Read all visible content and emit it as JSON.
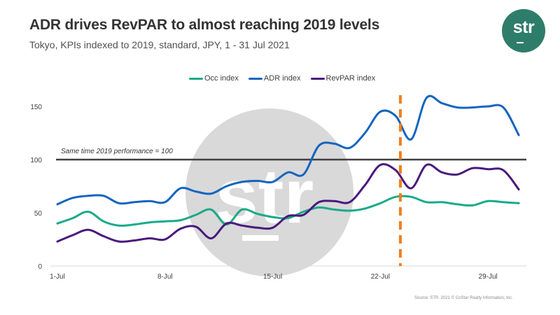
{
  "header": {
    "title": "ADR drives RevPAR to almost reaching 2019 levels",
    "subtitle": "Tokyo, KPIs indexed to 2019, standard, JPY, 1 - 31 Jul 2021",
    "logo_text": "str"
  },
  "watermark_text": "str",
  "source": "Source: STR. 2021 © CoStar Realty Information, Inc.",
  "colors": {
    "occ": "#1aaa8a",
    "adr": "#1565c0",
    "revpar": "#4a1a7e",
    "reference": "#404040",
    "marker": "#f07f1d",
    "logo": "#2e7d6b"
  },
  "chart_data": {
    "type": "line",
    "title": "ADR drives RevPAR to almost reaching 2019 levels",
    "subtitle": "Tokyo, KPIs indexed to 2019, standard, JPY, 1 - 31 Jul 2021",
    "xlabel": "",
    "ylabel": "",
    "ylim": [
      0,
      160
    ],
    "yticks": [
      0,
      50,
      100,
      150
    ],
    "x": [
      1,
      2,
      3,
      4,
      5,
      6,
      7,
      8,
      9,
      10,
      11,
      12,
      13,
      14,
      15,
      16,
      17,
      18,
      19,
      20,
      21,
      22,
      23,
      24,
      25,
      26,
      27,
      28,
      29,
      30,
      31
    ],
    "xtick_labels": [
      {
        "day": 1,
        "label": "1-Jul"
      },
      {
        "day": 8,
        "label": "8-Jul"
      },
      {
        "day": 15,
        "label": "15-Jul"
      },
      {
        "day": 22,
        "label": "22-Jul"
      },
      {
        "day": 29,
        "label": "29-Jul"
      }
    ],
    "legend_position": "top-center",
    "grid": false,
    "series": [
      {
        "name": "Occ index",
        "key": "occ",
        "values": [
          40,
          45,
          51,
          42,
          38,
          39,
          41,
          42,
          43,
          48,
          53,
          39,
          53,
          49,
          46,
          45,
          51,
          55,
          53,
          52,
          54,
          59,
          65,
          65,
          60,
          60,
          58,
          57,
          61,
          60,
          59
        ]
      },
      {
        "name": "ADR index",
        "key": "adr",
        "values": [
          58,
          64,
          66,
          66,
          59,
          60,
          61,
          60,
          73,
          70,
          68,
          75,
          79,
          80,
          79,
          88,
          86,
          113,
          115,
          111,
          125,
          145,
          141,
          119,
          158,
          153,
          149,
          149,
          150,
          149,
          123
        ]
      },
      {
        "name": "RevPAR index",
        "key": "revpar",
        "values": [
          23,
          29,
          34,
          28,
          23,
          24,
          26,
          25,
          35,
          37,
          26,
          40,
          38,
          36,
          36,
          47,
          48,
          60,
          61,
          60,
          76,
          95,
          90,
          73,
          95,
          88,
          86,
          92,
          91,
          90,
          72
        ]
      }
    ],
    "reference_line": {
      "value": 100,
      "label": "Same time 2019 performance = 100"
    },
    "marker_line": {
      "day": 23.3,
      "style": "dashed"
    }
  }
}
